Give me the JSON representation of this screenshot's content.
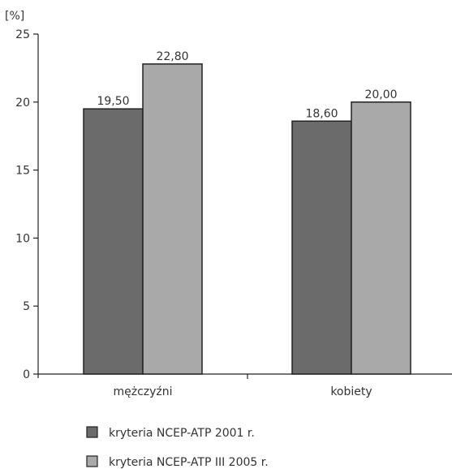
{
  "chart_data": {
    "type": "bar",
    "unit_label": "[%]",
    "categories": [
      "mężczyźni",
      "kobiety"
    ],
    "series": [
      {
        "name": "kryteria NCEP-ATP 2001 r.",
        "values": [
          19.5,
          18.6
        ],
        "labels": [
          "19,50",
          "18,60"
        ],
        "color": "#6b6b6b"
      },
      {
        "name": "kryteria NCEP-ATP III 2005 r.",
        "values": [
          22.8,
          20.0
        ],
        "labels": [
          "22,80",
          "20,00"
        ],
        "color": "#a9a9a9"
      }
    ],
    "ylim": [
      0,
      25
    ],
    "yticks": [
      0,
      5,
      10,
      15,
      20,
      25
    ],
    "grid": false,
    "legend_position": "bottom"
  }
}
